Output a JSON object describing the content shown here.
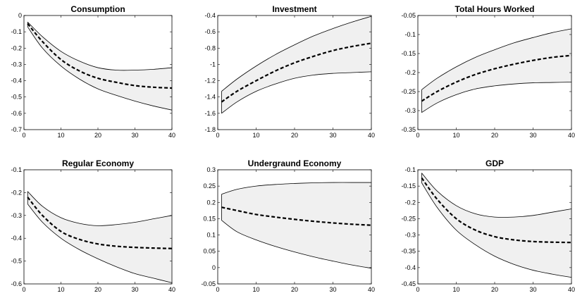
{
  "chart_data": [
    {
      "type": "line",
      "title": "Consumption",
      "xlabel": "",
      "ylabel": "",
      "xlim": [
        0,
        40
      ],
      "ylim": [
        -0.7,
        0
      ],
      "xticks": [
        0,
        10,
        20,
        30,
        40
      ],
      "yticks": [
        -0.7,
        -0.6,
        -0.5,
        -0.4,
        -0.3,
        -0.2,
        -0.1,
        0
      ],
      "ytick_labels": [
        "-0.7",
        "-0.6",
        "-0.5",
        "-0.4",
        "-0.3",
        "-0.2",
        "-0.1",
        "0"
      ],
      "x": [
        1,
        5,
        10,
        15,
        20,
        25,
        30,
        35,
        40
      ],
      "series": [
        {
          "role": "upper",
          "style": "solid",
          "values": [
            -0.04,
            -0.13,
            -0.22,
            -0.28,
            -0.32,
            -0.335,
            -0.335,
            -0.33,
            -0.32
          ]
        },
        {
          "role": "median",
          "style": "dashed",
          "values": [
            -0.05,
            -0.16,
            -0.27,
            -0.34,
            -0.385,
            -0.41,
            -0.43,
            -0.44,
            -0.445
          ]
        },
        {
          "role": "lower",
          "style": "solid",
          "values": [
            -0.07,
            -0.2,
            -0.31,
            -0.39,
            -0.45,
            -0.49,
            -0.525,
            -0.555,
            -0.58
          ]
        }
      ],
      "band_fill": "#f0f0f0"
    },
    {
      "type": "line",
      "title": "Investment",
      "xlabel": "",
      "ylabel": "",
      "xlim": [
        0,
        40
      ],
      "ylim": [
        -1.8,
        -0.4
      ],
      "xticks": [
        0,
        10,
        20,
        30,
        40
      ],
      "yticks": [
        -1.8,
        -1.6,
        -1.4,
        -1.2,
        -1.0,
        -0.8,
        -0.6,
        -0.4
      ],
      "ytick_labels": [
        "-1.8",
        "-1.6",
        "-1.4",
        "-1.2",
        "-1",
        "-0.8",
        "-0.6",
        "-0.4"
      ],
      "x": [
        1,
        5,
        10,
        15,
        20,
        25,
        30,
        35,
        40
      ],
      "series": [
        {
          "role": "upper",
          "style": "solid",
          "values": [
            -1.33,
            -1.18,
            -1.02,
            -0.88,
            -0.76,
            -0.65,
            -0.56,
            -0.48,
            -0.41
          ]
        },
        {
          "role": "median",
          "style": "dashed",
          "values": [
            -1.46,
            -1.33,
            -1.2,
            -1.08,
            -0.98,
            -0.9,
            -0.83,
            -0.78,
            -0.74
          ]
        },
        {
          "role": "lower",
          "style": "solid",
          "values": [
            -1.6,
            -1.46,
            -1.33,
            -1.24,
            -1.17,
            -1.13,
            -1.11,
            -1.1,
            -1.09
          ]
        }
      ],
      "band_fill": "#f0f0f0"
    },
    {
      "type": "line",
      "title": "Total Hours Worked",
      "xlabel": "",
      "ylabel": "",
      "xlim": [
        0,
        40
      ],
      "ylim": [
        -0.35,
        -0.05
      ],
      "xticks": [
        0,
        10,
        20,
        30,
        40
      ],
      "yticks": [
        -0.35,
        -0.3,
        -0.25,
        -0.2,
        -0.15,
        -0.1,
        -0.05
      ],
      "ytick_labels": [
        "-0.35",
        "-0.3",
        "-0.25",
        "-0.2",
        "-0.15",
        "-0.1",
        "-0.05"
      ],
      "x": [
        1,
        5,
        10,
        15,
        20,
        25,
        30,
        35,
        40
      ],
      "series": [
        {
          "role": "upper",
          "style": "solid",
          "values": [
            -0.245,
            -0.215,
            -0.185,
            -0.16,
            -0.14,
            -0.122,
            -0.108,
            -0.095,
            -0.085
          ]
        },
        {
          "role": "median",
          "style": "dashed",
          "values": [
            -0.275,
            -0.25,
            -0.225,
            -0.205,
            -0.19,
            -0.178,
            -0.168,
            -0.16,
            -0.155
          ]
        },
        {
          "role": "lower",
          "style": "solid",
          "values": [
            -0.305,
            -0.28,
            -0.258,
            -0.243,
            -0.235,
            -0.23,
            -0.227,
            -0.226,
            -0.225
          ]
        }
      ],
      "band_fill": "#f0f0f0"
    },
    {
      "type": "line",
      "title": "Regular Economy",
      "xlabel": "",
      "ylabel": "",
      "xlim": [
        0,
        40
      ],
      "ylim": [
        -0.6,
        -0.1
      ],
      "xticks": [
        0,
        10,
        20,
        30,
        40
      ],
      "yticks": [
        -0.6,
        -0.5,
        -0.4,
        -0.3,
        -0.2,
        -0.1
      ],
      "ytick_labels": [
        "-0.6",
        "-0.5",
        "-0.4",
        "-0.3",
        "-0.2",
        "-0.1"
      ],
      "x": [
        1,
        5,
        10,
        15,
        20,
        25,
        30,
        35,
        40
      ],
      "series": [
        {
          "role": "upper",
          "style": "solid",
          "values": [
            -0.195,
            -0.26,
            -0.31,
            -0.335,
            -0.345,
            -0.34,
            -0.33,
            -0.315,
            -0.3
          ]
        },
        {
          "role": "median",
          "style": "dashed",
          "values": [
            -0.22,
            -0.3,
            -0.37,
            -0.405,
            -0.425,
            -0.435,
            -0.44,
            -0.443,
            -0.445
          ]
        },
        {
          "role": "lower",
          "style": "solid",
          "values": [
            -0.25,
            -0.33,
            -0.4,
            -0.45,
            -0.49,
            -0.525,
            -0.555,
            -0.575,
            -0.595
          ]
        }
      ],
      "band_fill": "#f0f0f0"
    },
    {
      "type": "line",
      "title": "Undergraund Economy",
      "xlabel": "",
      "ylabel": "",
      "xlim": [
        0,
        40
      ],
      "ylim": [
        -0.05,
        0.3
      ],
      "xticks": [
        0,
        10,
        20,
        30,
        40
      ],
      "yticks": [
        -0.05,
        0,
        0.05,
        0.1,
        0.15,
        0.2,
        0.25,
        0.3
      ],
      "ytick_labels": [
        "-0.05",
        "0",
        "0.05",
        "0.1",
        "0.15",
        "0.2",
        "0.25",
        "0.3"
      ],
      "x": [
        1,
        5,
        10,
        15,
        20,
        25,
        30,
        35,
        40
      ],
      "series": [
        {
          "role": "upper",
          "style": "solid",
          "values": [
            0.225,
            0.24,
            0.25,
            0.255,
            0.258,
            0.26,
            0.261,
            0.261,
            0.261
          ]
        },
        {
          "role": "median",
          "style": "dashed",
          "values": [
            0.185,
            0.175,
            0.163,
            0.155,
            0.148,
            0.142,
            0.137,
            0.133,
            0.13
          ]
        },
        {
          "role": "lower",
          "style": "solid",
          "values": [
            0.145,
            0.11,
            0.085,
            0.065,
            0.048,
            0.033,
            0.02,
            0.008,
            -0.002
          ]
        }
      ],
      "band_fill": "#f0f0f0"
    },
    {
      "type": "line",
      "title": "GDP",
      "xlabel": "",
      "ylabel": "",
      "xlim": [
        0,
        40
      ],
      "ylim": [
        -0.45,
        -0.1
      ],
      "xticks": [
        0,
        10,
        20,
        30,
        40
      ],
      "yticks": [
        -0.45,
        -0.4,
        -0.35,
        -0.3,
        -0.25,
        -0.2,
        -0.15,
        -0.1
      ],
      "ytick_labels": [
        "-0.45",
        "-0.4",
        "-0.35",
        "-0.3",
        "-0.25",
        "-0.2",
        "-0.15",
        "-0.1"
      ],
      "x": [
        1,
        5,
        10,
        15,
        20,
        25,
        30,
        35,
        40
      ],
      "series": [
        {
          "role": "upper",
          "style": "solid",
          "values": [
            -0.11,
            -0.165,
            -0.21,
            -0.235,
            -0.245,
            -0.245,
            -0.24,
            -0.23,
            -0.22
          ]
        },
        {
          "role": "median",
          "style": "dashed",
          "values": [
            -0.125,
            -0.19,
            -0.25,
            -0.285,
            -0.305,
            -0.315,
            -0.32,
            -0.322,
            -0.323
          ]
        },
        {
          "role": "lower",
          "style": "solid",
          "values": [
            -0.14,
            -0.215,
            -0.285,
            -0.33,
            -0.365,
            -0.39,
            -0.408,
            -0.42,
            -0.43
          ]
        }
      ],
      "band_fill": "#f0f0f0"
    }
  ]
}
